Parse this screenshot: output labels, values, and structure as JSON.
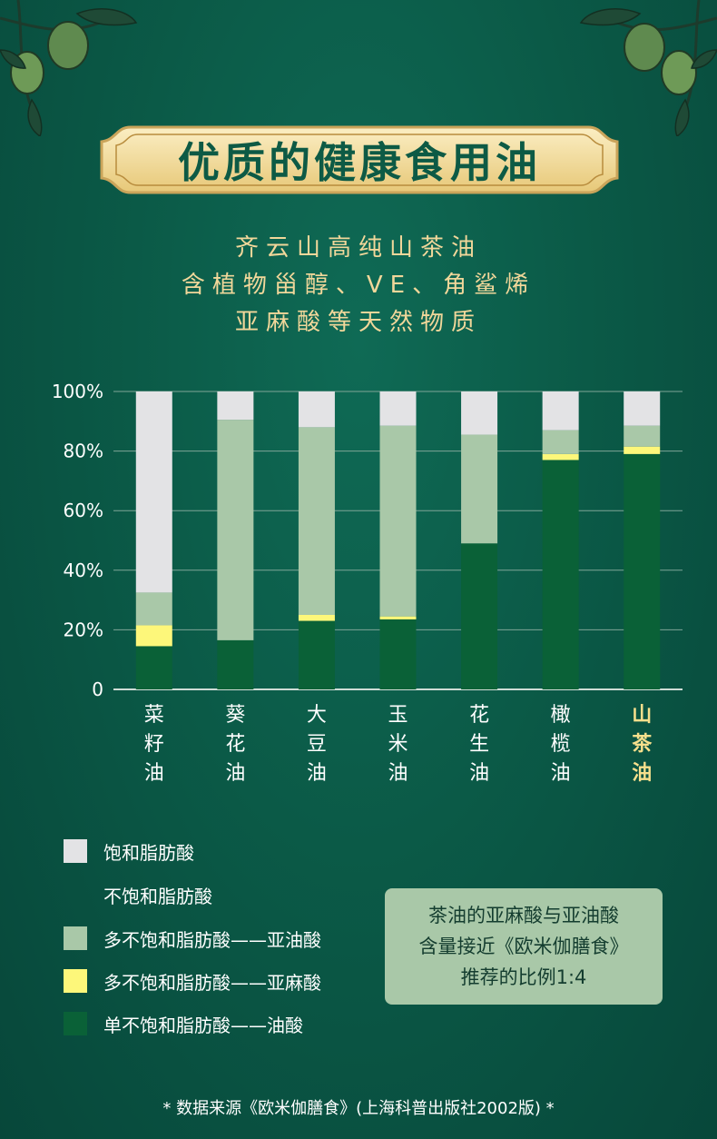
{
  "header": {
    "title": "优质的健康食用油",
    "subtitle_lines": [
      "齐云山高纯山茶油",
      "含植物甾醇、VE、角鲨烯",
      "亚麻酸等天然物质"
    ]
  },
  "colors": {
    "background": "#0b5a47",
    "accent_gold": "#f1d79a",
    "saturated": "#e3e3e5",
    "linoleic": "#a9c8a8",
    "linolenic": "#fdf77a",
    "oleic": "#0a6137",
    "highlight_label": "#f6df8c"
  },
  "chart_data": {
    "type": "bar",
    "stacked": true,
    "categories": [
      "菜籽油",
      "葵花油",
      "大豆油",
      "玉米油",
      "花生油",
      "橄榄油",
      "山茶油"
    ],
    "highlight_category": "山茶油",
    "yticks": [
      "0",
      "20%",
      "40%",
      "60%",
      "80%",
      "100%"
    ],
    "ylim": [
      0,
      100
    ],
    "series": [
      {
        "name": "单不饱和脂肪酸——油酸",
        "values": [
          14.5,
          16.5,
          23,
          23.5,
          49,
          77,
          79
        ]
      },
      {
        "name": "多不饱和脂肪酸——亚麻酸",
        "values": [
          7,
          0,
          2,
          1,
          0,
          2,
          2.5
        ]
      },
      {
        "name": "多不饱和脂肪酸——亚油酸",
        "values": [
          11,
          74,
          63,
          64,
          36.5,
          8,
          7
        ]
      },
      {
        "name": "饱和脂肪酸",
        "values": [
          67.5,
          9.5,
          12,
          11.5,
          14.5,
          13,
          11.5
        ]
      }
    ],
    "grid": true
  },
  "legend": {
    "items": [
      {
        "label": "饱和脂肪酸",
        "color": "#e3e3e5"
      },
      {
        "label": "不饱和脂肪酸",
        "color": ""
      },
      {
        "label": "多不饱和脂肪酸——亚油酸",
        "color": "#a9c8a8"
      },
      {
        "label": "多不饱和脂肪酸——亚麻酸",
        "color": "#fdf77a"
      },
      {
        "label": "单不饱和脂肪酸——油酸",
        "color": "#0a6137"
      }
    ]
  },
  "note": {
    "lines": [
      "茶油的亚麻酸与亚油酸",
      "含量接近《欧米伽膳食》",
      "推荐的比例1:4"
    ]
  },
  "footnote": "* 数据来源《欧米伽膳食》(上海科普出版社2002版) *",
  "icons": [
    "olive-branch-icon"
  ]
}
